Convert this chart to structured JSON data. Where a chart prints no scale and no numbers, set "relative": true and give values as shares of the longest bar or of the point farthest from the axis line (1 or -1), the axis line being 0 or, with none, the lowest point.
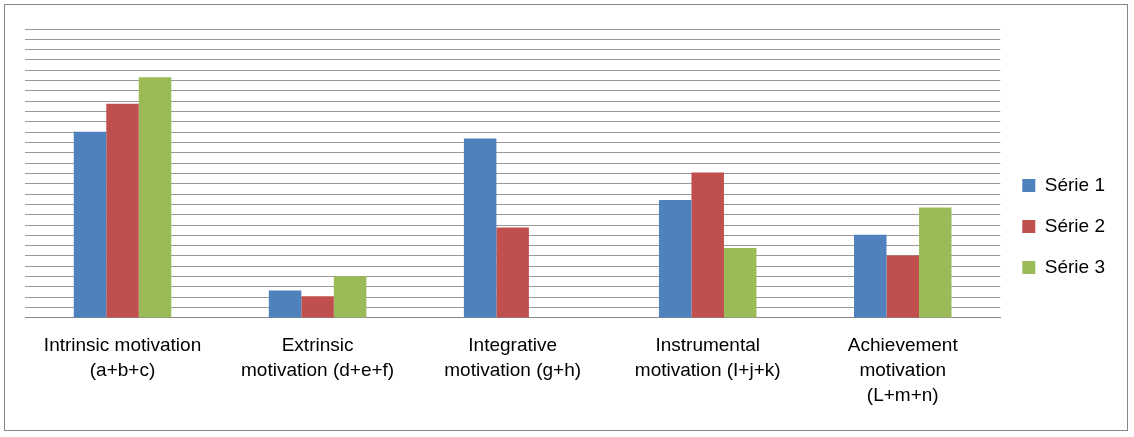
{
  "chart_data": {
    "type": "bar",
    "relative": true,
    "grid": "y",
    "legend": "right",
    "categories": [
      "Intrinsic motivation (a+b+c)",
      "Extrinsic motivation (d+e+f)",
      "Integrative motivation (g+h)",
      "Instrumental motivation (I+j+k)",
      "Achievement motivation (L+m+n)"
    ],
    "series": [
      {
        "name": "Série 1",
        "color": "#4f81bd",
        "values": [
          0.773,
          0.114,
          0.745,
          0.49,
          0.345
        ]
      },
      {
        "name": "Série 2",
        "color": "#c0504d",
        "values": [
          0.89,
          0.09,
          0.376,
          0.604,
          0.259
        ]
      },
      {
        "name": "Série 3",
        "color": "#9bbb59",
        "values": [
          1,
          0.173,
          null,
          0.29,
          0.459
        ]
      }
    ]
  }
}
